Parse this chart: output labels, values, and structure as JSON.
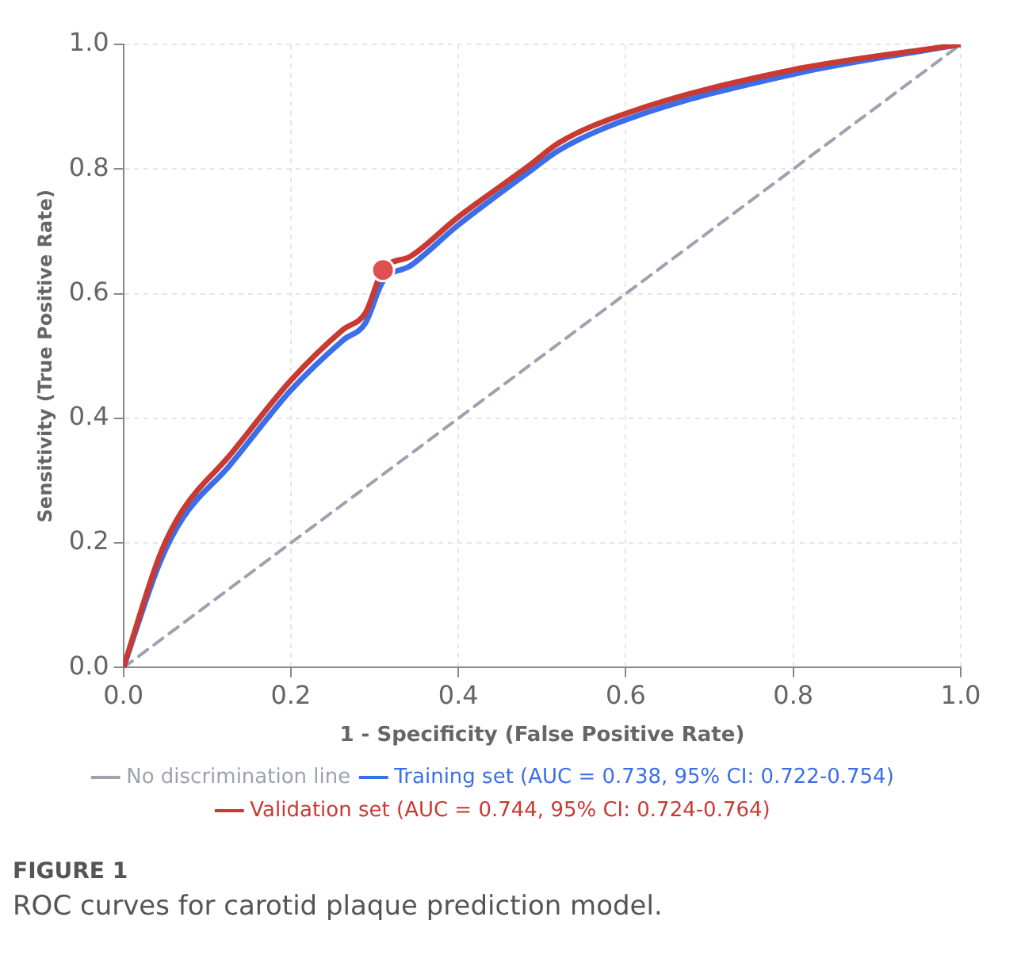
{
  "chart_data": {
    "type": "line",
    "xlabel": "1 - Specificity (False Positive Rate)",
    "ylabel": "Sensitivity (True Positive Rate)",
    "xlim": [
      0,
      1
    ],
    "ylim": [
      0,
      1
    ],
    "xticks": [
      {
        "value": 0,
        "label": "0.0"
      },
      0.2,
      0.4,
      0.6,
      0.8,
      {
        "value": 1,
        "label": "1.0"
      }
    ],
    "yticks": [
      {
        "value": 0,
        "label": "0.0"
      },
      0.2,
      0.4,
      0.6,
      0.8,
      {
        "value": 1,
        "label": "1.0"
      }
    ],
    "grid": true,
    "legend": "bottom",
    "marker": "none",
    "series": [
      {
        "name": "No discrimination line",
        "color": "#9ca3af",
        "line_style": "dashed",
        "x": [
          0,
          1
        ],
        "values": [
          0,
          1
        ]
      },
      {
        "name": "Training set (AUC = 0.738, 95% CI: 0.722-0.754)",
        "color": "#3b6ee8",
        "x": [
          0,
          0.044,
          0.071,
          0.126,
          0.2,
          0.262,
          0.289,
          0.31,
          0.343,
          0.398,
          0.486,
          0.52,
          0.602,
          0.799,
          1
        ],
        "values": [
          0,
          0.17,
          0.24,
          0.323,
          0.445,
          0.525,
          0.553,
          0.62,
          0.645,
          0.708,
          0.797,
          0.83,
          0.88,
          0.952,
          1
        ]
      },
      {
        "name": "Validation set (AUC = 0.744, 95% CI: 0.724-0.764)",
        "color": "#c83a32",
        "x": [
          0,
          0.044,
          0.071,
          0.126,
          0.2,
          0.262,
          0.289,
          0.31,
          0.343,
          0.398,
          0.486,
          0.52,
          0.602,
          0.799,
          1
        ],
        "values": [
          0,
          0.182,
          0.253,
          0.339,
          0.461,
          0.542,
          0.569,
          0.638,
          0.66,
          0.721,
          0.807,
          0.842,
          0.89,
          0.959,
          1
        ]
      },
      {
        "type": "scatter",
        "marker": "circle",
        "color": "#e05050",
        "x": [
          0.31
        ],
        "values": [
          0.638
        ]
      }
    ],
    "annotations": [
      "FIGURE 1",
      "ROC curves for carotid plaque prediction model."
    ]
  }
}
